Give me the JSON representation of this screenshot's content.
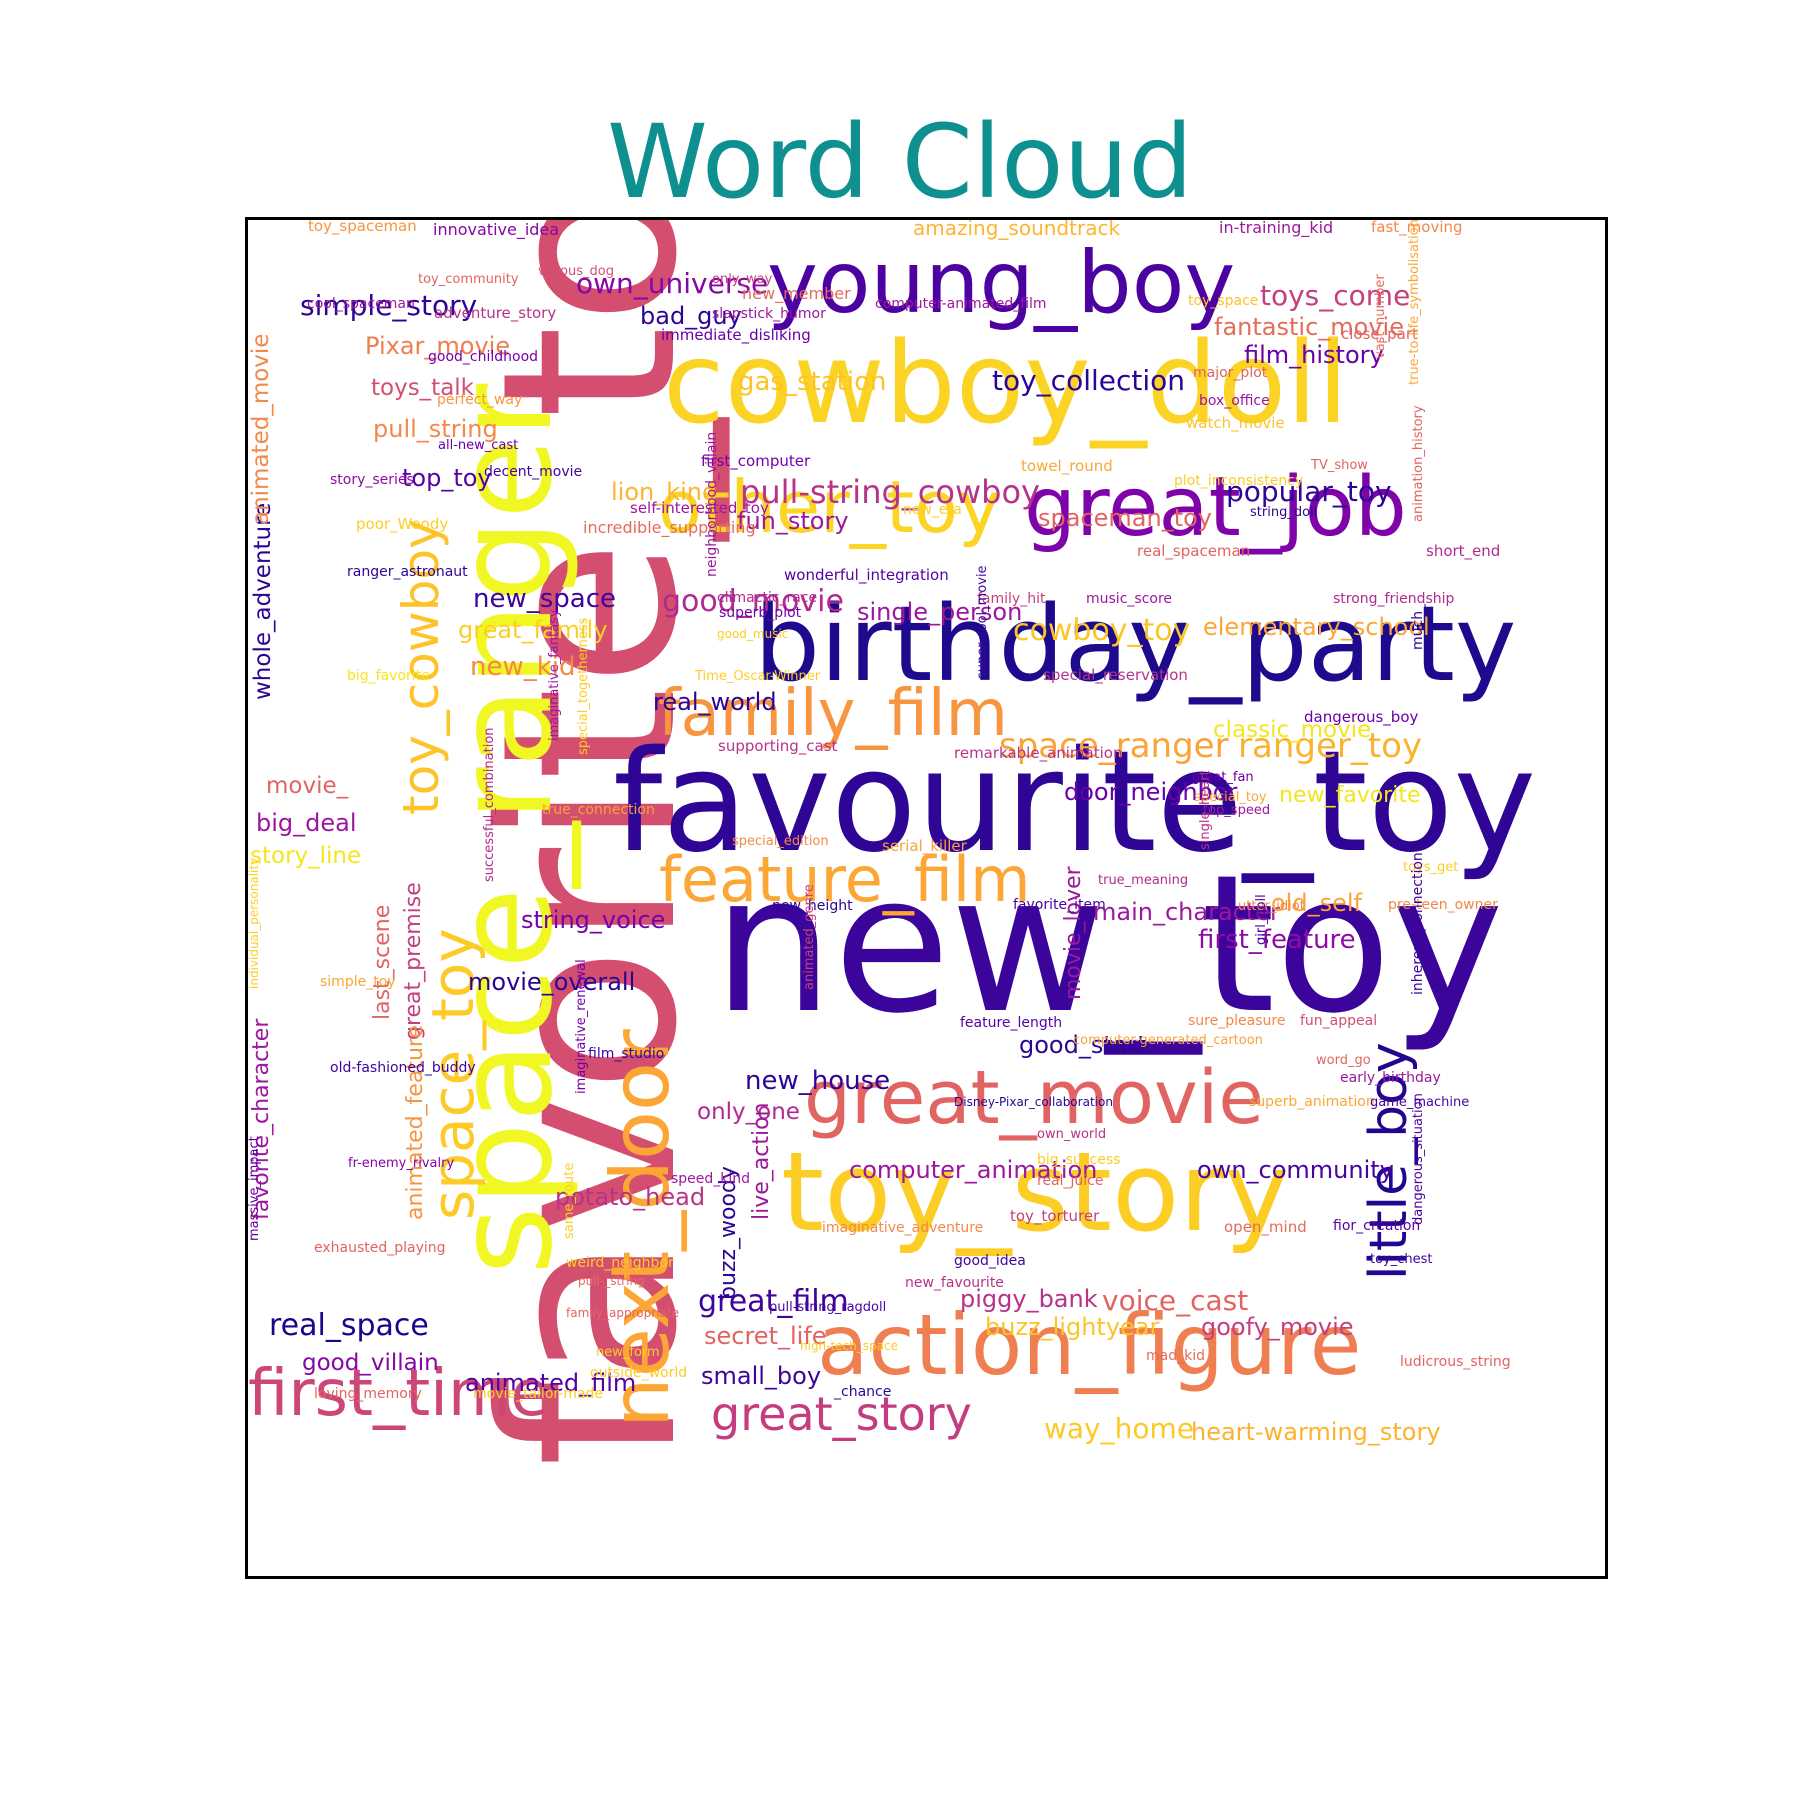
{
  "chart_data": {
    "type": "wordcloud",
    "title": "Word Cloud",
    "colormap": "plasma",
    "words": [
      {
        "text": "favorite_toy",
        "color": "#d44e70"
      },
      {
        "text": "new_toy",
        "color": "#3b049a"
      },
      {
        "text": "favourite_toy",
        "color": "#2f0596"
      },
      {
        "text": "space_ranger",
        "color": "#f0f723"
      },
      {
        "text": "cowboy_doll",
        "color": "#fbd324"
      },
      {
        "text": "toy_story",
        "color": "#fcce25"
      },
      {
        "text": "birthday_party",
        "color": "#1e0a8c"
      },
      {
        "text": "young_boy",
        "color": "#4c02a1"
      },
      {
        "text": "great_job",
        "color": "#7e03a8"
      },
      {
        "text": "action_figure",
        "color": "#ef7e50"
      },
      {
        "text": "next_door",
        "color": "#fca636"
      },
      {
        "text": "great_movie",
        "color": "#e16462"
      },
      {
        "text": "other_toy",
        "color": "#fbd424"
      },
      {
        "text": "family_film",
        "color": "#f89540"
      },
      {
        "text": "feature_film",
        "color": "#fca636"
      },
      {
        "text": "first_time",
        "color": "#cc4778"
      },
      {
        "text": "little_boy",
        "color": "#220690"
      },
      {
        "text": "toy_cowboy",
        "color": "#fdc328"
      },
      {
        "text": "space_toy",
        "color": "#fdca26"
      },
      {
        "text": "great_story",
        "color": "#c33d80"
      },
      {
        "text": "pull-string_cowboy",
        "color": "#b83289"
      },
      {
        "text": "space_ranger",
        "color": "#fca338"
      },
      {
        "text": "ranger_toy",
        "color": "#fbb32f"
      },
      {
        "text": "good_movie",
        "color": "#b12a90"
      },
      {
        "text": "cowboy_toy",
        "color": "#fdc627"
      },
      {
        "text": "simple_story",
        "color": "#2c0594"
      },
      {
        "text": "own_universe",
        "color": "#8606a6"
      },
      {
        "text": "toy_collection",
        "color": "#2c0594"
      },
      {
        "text": "popular_toy",
        "color": "#2e0595"
      },
      {
        "text": "gas_station",
        "color": "#fdc328"
      },
      {
        "text": "fantastic_movie",
        "color": "#e56b5d"
      },
      {
        "text": "toys_come",
        "color": "#c5407e"
      },
      {
        "text": "film_history",
        "color": "#6a00a8"
      },
      {
        "text": "elementary_school",
        "color": "#fca636"
      },
      {
        "text": "single_person",
        "color": "#9c179e"
      },
      {
        "text": "new_space",
        "color": "#3e049c"
      },
      {
        "text": "voice_cast",
        "color": "#e16462"
      },
      {
        "text": "goofy_movie",
        "color": "#c5407e"
      },
      {
        "text": "buzz_lightyear",
        "color": "#fdc328"
      },
      {
        "text": "piggy_bank",
        "color": "#b83289"
      },
      {
        "text": "great_film",
        "color": "#3e049c"
      },
      {
        "text": "real_space",
        "color": "#1a068b"
      },
      {
        "text": "way_home",
        "color": "#fdc926"
      },
      {
        "text": "heart-warming_story",
        "color": "#fbb32f"
      },
      {
        "text": "main_character",
        "color": "#9c179e"
      },
      {
        "text": "first_feature",
        "color": "#8e0ca4"
      },
      {
        "text": "old_self",
        "color": "#fba238"
      },
      {
        "text": "door_neighbor",
        "color": "#6a00a8"
      },
      {
        "text": "new_favorite",
        "color": "#f4e61e"
      },
      {
        "text": "computer_animation",
        "color": "#9c179e"
      },
      {
        "text": "own_community",
        "color": "#4903a0"
      },
      {
        "text": "potato_head",
        "color": "#b83289"
      },
      {
        "text": "animated_film",
        "color": "#5402a3"
      },
      {
        "text": "small_boy",
        "color": "#3e049c"
      },
      {
        "text": "secret_life",
        "color": "#e16462"
      },
      {
        "text": "new_house",
        "color": "#2e0595"
      },
      {
        "text": "string_voice",
        "color": "#7701a8"
      },
      {
        "text": "movie_overall",
        "color": "#2a0593"
      },
      {
        "text": "new_kid",
        "color": "#f48849"
      },
      {
        "text": "great_family",
        "color": "#fcce25"
      },
      {
        "text": "real_world",
        "color": "#2c0594"
      },
      {
        "text": "lion_king",
        "color": "#fdb42f"
      },
      {
        "text": "fun_story",
        "color": "#9c179e"
      },
      {
        "text": "spaceman_toy",
        "color": "#e16462"
      },
      {
        "text": "bad_guy",
        "color": "#2c0594"
      },
      {
        "text": "Pixar_movie",
        "color": "#ef7e50"
      },
      {
        "text": "toys_talk",
        "color": "#d44e70"
      },
      {
        "text": "pull_string",
        "color": "#f48849"
      },
      {
        "text": "top_toy",
        "color": "#5402a3"
      },
      {
        "text": "classic_movie",
        "color": "#f4e61e"
      },
      {
        "text": "good_start",
        "color": "#2e0595"
      },
      {
        "text": "only_one",
        "color": "#b12a90"
      },
      {
        "text": "big_deal",
        "color": "#9c179e"
      },
      {
        "text": "story_line",
        "color": "#f4e61e"
      },
      {
        "text": "movie_",
        "color": "#e16462"
      },
      {
        "text": "good_villain",
        "color": "#8606a6"
      },
      {
        "text": "whole_adventure",
        "color": "#2c0594"
      },
      {
        "text": "animated_movie",
        "color": "#f48849"
      },
      {
        "text": "favorite_character",
        "color": "#9c179e"
      },
      {
        "text": "last_scene",
        "color": "#e16462"
      },
      {
        "text": "great_premise",
        "color": "#c5407e"
      },
      {
        "text": "animated_feature",
        "color": "#f89540"
      },
      {
        "text": "buzz_woody",
        "color": "#2c0594"
      },
      {
        "text": "live_action",
        "color": "#9c179e"
      },
      {
        "text": "movie_lover",
        "color": "#9c179e"
      },
      {
        "text": "innovative_idea",
        "color": "#8606a6"
      },
      {
        "text": "amazing_soundtrack",
        "color": "#fdb42f"
      },
      {
        "text": "in-training_kid",
        "color": "#9c179e"
      },
      {
        "text": "toy_spaceman",
        "color": "#f89540"
      },
      {
        "text": "fast_moving",
        "color": "#f48849"
      },
      {
        "text": "vicious_dog",
        "color": "#d44e70"
      },
      {
        "text": "toy_community",
        "color": "#e16462"
      },
      {
        "text": "only_way",
        "color": "#c5407e"
      },
      {
        "text": "new_member",
        "color": "#e56b5d"
      },
      {
        "text": "cool_spaceman",
        "color": "#9c179e"
      },
      {
        "text": "adventure_story",
        "color": "#b83289"
      },
      {
        "text": "slapstick_humor",
        "color": "#9c179e"
      },
      {
        "text": "computer-animated_film",
        "color": "#9c179e"
      },
      {
        "text": "toy_space",
        "color": "#fdc328"
      },
      {
        "text": "immediate_disliking",
        "color": "#6a00a8"
      },
      {
        "text": "close_part",
        "color": "#e16462"
      },
      {
        "text": "good_childhood",
        "color": "#7701a8"
      },
      {
        "text": "major_plot",
        "color": "#e16462"
      },
      {
        "text": "perfect_way",
        "color": "#f89540"
      },
      {
        "text": "box_office",
        "color": "#9c179e"
      },
      {
        "text": "watch_movie",
        "color": "#fdc328"
      },
      {
        "text": "all-new_cast",
        "color": "#6a00a8"
      },
      {
        "text": "decent_movie",
        "color": "#3e049c"
      },
      {
        "text": "first_computer",
        "color": "#7701a8"
      },
      {
        "text": "towel_round",
        "color": "#fca636"
      },
      {
        "text": "TV_show",
        "color": "#e16462"
      },
      {
        "text": "story_series",
        "color": "#8e0ca4"
      },
      {
        "text": "plot_inconsistency",
        "color": "#fcce25"
      },
      {
        "text": "poor_Woody",
        "color": "#fcce25"
      },
      {
        "text": "self-interested_toy",
        "color": "#9c179e"
      },
      {
        "text": "new_era",
        "color": "#fcce25"
      },
      {
        "text": "string_doll",
        "color": "#2c0594"
      },
      {
        "text": "incredible_supporting",
        "color": "#e56b5d"
      },
      {
        "text": "real_spaceman",
        "color": "#e16462"
      },
      {
        "text": "short_end",
        "color": "#b12a90"
      },
      {
        "text": "ranger_astronaut",
        "color": "#2c0594"
      },
      {
        "text": "wonderful_integration",
        "color": "#5402a3"
      },
      {
        "text": "climactic_race",
        "color": "#b12a90"
      },
      {
        "text": "family_hit",
        "color": "#c5407e"
      },
      {
        "text": "music_score",
        "color": "#9c179e"
      },
      {
        "text": "strong_friendship",
        "color": "#b12a90"
      },
      {
        "text": "superb_plot",
        "color": "#7701a8"
      },
      {
        "text": "good_music",
        "color": "#fcce25"
      },
      {
        "text": "big_favorite",
        "color": "#f4e61e"
      },
      {
        "text": "Time_Oscar-Winner",
        "color": "#fcce25"
      },
      {
        "text": "special_reservation",
        "color": "#b83289"
      },
      {
        "text": "dangerous_boy",
        "color": "#6a00a8"
      },
      {
        "text": "supporting_cast",
        "color": "#b83289"
      },
      {
        "text": "remarkable_animation",
        "color": "#b83289"
      },
      {
        "text": "great_fan",
        "color": "#6a00a8"
      },
      {
        "text": "special_toy",
        "color": "#fca636"
      },
      {
        "text": "top_speed",
        "color": "#9c179e"
      },
      {
        "text": "true_connection",
        "color": "#fba238"
      },
      {
        "text": "special_edition",
        "color": "#f48849"
      },
      {
        "text": "serial_killer",
        "color": "#fba238"
      },
      {
        "text": "toys_get",
        "color": "#fcce25"
      },
      {
        "text": "true_meaning",
        "color": "#b12a90"
      },
      {
        "text": "new_height",
        "color": "#2c0594"
      },
      {
        "text": "favorite_item",
        "color": "#4903a0"
      },
      {
        "text": "utter_idiot",
        "color": "#f48849"
      },
      {
        "text": "pre-teen_owner",
        "color": "#f48849"
      },
      {
        "text": "simple_toy",
        "color": "#fca636"
      },
      {
        "text": "sure_pleasure",
        "color": "#f48849"
      },
      {
        "text": "fun_appeal",
        "color": "#d44e70"
      },
      {
        "text": "feature_length",
        "color": "#5402a3"
      },
      {
        "text": "computer-generated_cartoon",
        "color": "#fba238"
      },
      {
        "text": "old-fashioned_buddy",
        "color": "#3e049c"
      },
      {
        "text": "film_studio",
        "color": "#3e049c"
      },
      {
        "text": "word_go",
        "color": "#e16462"
      },
      {
        "text": "early_birthday",
        "color": "#9c179e"
      },
      {
        "text": "Disney-Pixar_collaboration",
        "color": "#2c0594"
      },
      {
        "text": "superb_animation",
        "color": "#fca636"
      },
      {
        "text": "game_machine",
        "color": "#4903a0"
      },
      {
        "text": "own_world",
        "color": "#b83289"
      },
      {
        "text": "fr-enemy_rivalry",
        "color": "#8606a6"
      },
      {
        "text": "speed_kind",
        "color": "#9c179e"
      },
      {
        "text": "big_success",
        "color": "#fcce25"
      },
      {
        "text": "real_juice",
        "color": "#e16462"
      },
      {
        "text": "toy_torturer",
        "color": "#c5407e"
      },
      {
        "text": "imaginative_adventure",
        "color": "#f48849"
      },
      {
        "text": "open_mind",
        "color": "#e56b5d"
      },
      {
        "text": "fior_creation",
        "color": "#5402a3"
      },
      {
        "text": "exhausted_playing",
        "color": "#e16462"
      },
      {
        "text": "good_idea",
        "color": "#3e049c"
      },
      {
        "text": "toy_chest",
        "color": "#3e049c"
      },
      {
        "text": "weird_neighbor",
        "color": "#fcce25"
      },
      {
        "text": "pull-_string",
        "color": "#e56b5d"
      },
      {
        "text": "new_favourite",
        "color": "#b83289"
      },
      {
        "text": "pull-string_ragdoll",
        "color": "#4903a0"
      },
      {
        "text": "family_appropriate",
        "color": "#e16462"
      },
      {
        "text": "high-tech_space",
        "color": "#fcce25"
      },
      {
        "text": "new_form",
        "color": "#fcce25"
      },
      {
        "text": "outside_world",
        "color": "#fcce25"
      },
      {
        "text": "mad_kid",
        "color": "#e56b5d"
      },
      {
        "text": "ludicrous_string",
        "color": "#e16462"
      },
      {
        "text": "loving_memory",
        "color": "#e16462"
      },
      {
        "text": "movie_tailor-made",
        "color": "#fcce25"
      },
      {
        "text": "_chance",
        "color": "#2c0594"
      },
      {
        "text": "neighborhood_villain",
        "color": "#9c179e"
      },
      {
        "text": "imaginative_fantasy",
        "color": "#9c179e"
      },
      {
        "text": "special_togetherness",
        "color": "#fcce25"
      },
      {
        "text": "successful_combination",
        "color": "#b12a90"
      },
      {
        "text": "individual_personality",
        "color": "#fcce25"
      },
      {
        "text": "massive_impact",
        "color": "#6a00a8"
      },
      {
        "text": "same_route",
        "color": "#fcce25"
      },
      {
        "text": "imaginative_renewal",
        "color": "#7701a8"
      },
      {
        "text": "animated_genre",
        "color": "#c5407e"
      },
      {
        "text": "super-cool_movie",
        "color": "#3e049c"
      },
      {
        "text": "single_heart",
        "color": "#b83289"
      },
      {
        "text": "girl_doll",
        "color": "#4903a0"
      },
      {
        "text": "vast_number",
        "color": "#e56b5d"
      },
      {
        "text": "true-to-life_symbolisation",
        "color": "#fca636"
      },
      {
        "text": "animation_history",
        "color": "#e16462"
      },
      {
        "text": "much_",
        "color": "#2c0594"
      },
      {
        "text": "inherent_connection",
        "color": "#3e049c"
      },
      {
        "text": "dangerous_situation",
        "color": "#4903a0"
      }
    ]
  }
}
